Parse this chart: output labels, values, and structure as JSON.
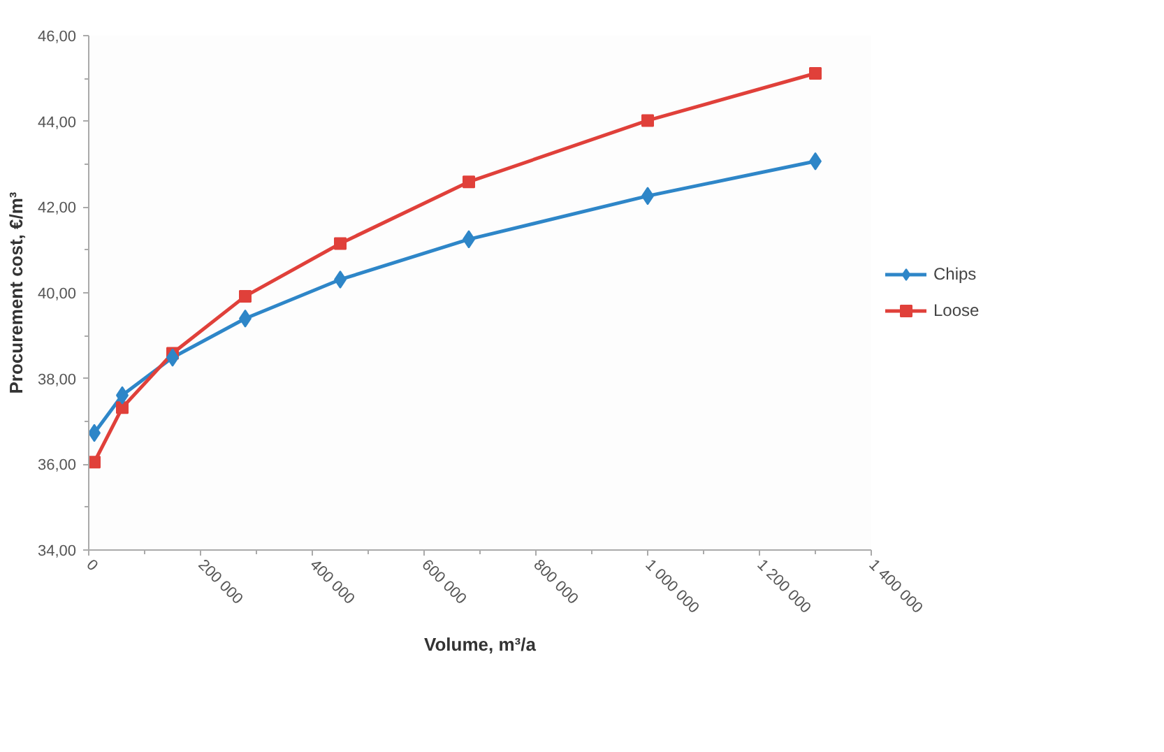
{
  "chart_data": {
    "type": "line",
    "xlabel": "Volume, m³/a",
    "ylabel": "Procurement cost, €/m³",
    "x": [
      10000,
      60000,
      150000,
      280000,
      450000,
      680000,
      1000000,
      1300000
    ],
    "series": [
      {
        "name": "Chips",
        "color": "#2e86c8",
        "marker": "diamond",
        "values": [
          36.73,
          37.61,
          38.49,
          39.4,
          40.31,
          41.25,
          42.26,
          43.07
        ]
      },
      {
        "name": "Loose",
        "color": "#e0403a",
        "marker": "square",
        "values": [
          36.05,
          37.32,
          38.59,
          39.92,
          41.15,
          42.59,
          44.02,
          45.12
        ]
      }
    ],
    "xlim": [
      0,
      1400000
    ],
    "ylim": [
      34,
      46
    ],
    "xticks": [
      {
        "value": 0,
        "label": "0"
      },
      {
        "value": 200000,
        "label": "200 000"
      },
      {
        "value": 400000,
        "label": "400 000"
      },
      {
        "value": 600000,
        "label": "600 000"
      },
      {
        "value": 800000,
        "label": "800 000"
      },
      {
        "value": 1000000,
        "label": "1 000 000"
      },
      {
        "value": 1200000,
        "label": "1 200 000"
      },
      {
        "value": 1400000,
        "label": "1 400 000"
      }
    ],
    "yticks": [
      {
        "value": 34,
        "label": "34,00"
      },
      {
        "value": 36,
        "label": "36,00"
      },
      {
        "value": 38,
        "label": "38,00"
      },
      {
        "value": 40,
        "label": "40,00"
      },
      {
        "value": 42,
        "label": "42,00"
      },
      {
        "value": 44,
        "label": "44,00"
      },
      {
        "value": 46,
        "label": "46,00"
      }
    ],
    "grid": false,
    "legend": "right",
    "line_style": "solid"
  }
}
